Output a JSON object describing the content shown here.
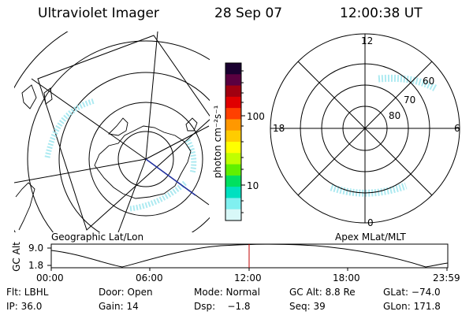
{
  "header": {
    "instrument": "Ultraviolet Imager",
    "date": "28 Sep 07",
    "time": "12:00:38 UT"
  },
  "left_map": {
    "caption": "Geographic Lat/Lon"
  },
  "right_map": {
    "caption": "Apex MLat/MLT",
    "mlt_labels": {
      "top": "12",
      "bottom": "0",
      "left": "18",
      "right": "6"
    },
    "mlat_labels": [
      "60",
      "70",
      "80"
    ]
  },
  "colorbar": {
    "unit_label": "photon cm⁻²s⁻¹",
    "tick_labels": [
      "100",
      "10"
    ],
    "colors": [
      "#1a0030",
      "#5a0040",
      "#a00010",
      "#e00000",
      "#ff4000",
      "#ff9800",
      "#ffcc00",
      "#ffff00",
      "#c0ff00",
      "#60f000",
      "#00e060",
      "#00e0c0",
      "#80f0f0",
      "#d8f8f8"
    ]
  },
  "timeline": {
    "axis_label": "GC Alt",
    "y_ticks": [
      "9.0",
      "1.8"
    ],
    "x_ticks": [
      "00:00",
      "06:00",
      "12:00",
      "18:00",
      "23:59"
    ],
    "current_time_color": "#c00000"
  },
  "footer": {
    "rows": [
      [
        "Flt: LBHL",
        "Door: Open",
        "Mode: Normal",
        "GC Alt: 8.8 Re",
        "GLat: −74.0"
      ],
      [
        "IP: 36.0",
        "Gain: 14",
        "Dsp:    −1.8",
        "Seq: 39",
        "GLon: 171.8"
      ]
    ]
  }
}
